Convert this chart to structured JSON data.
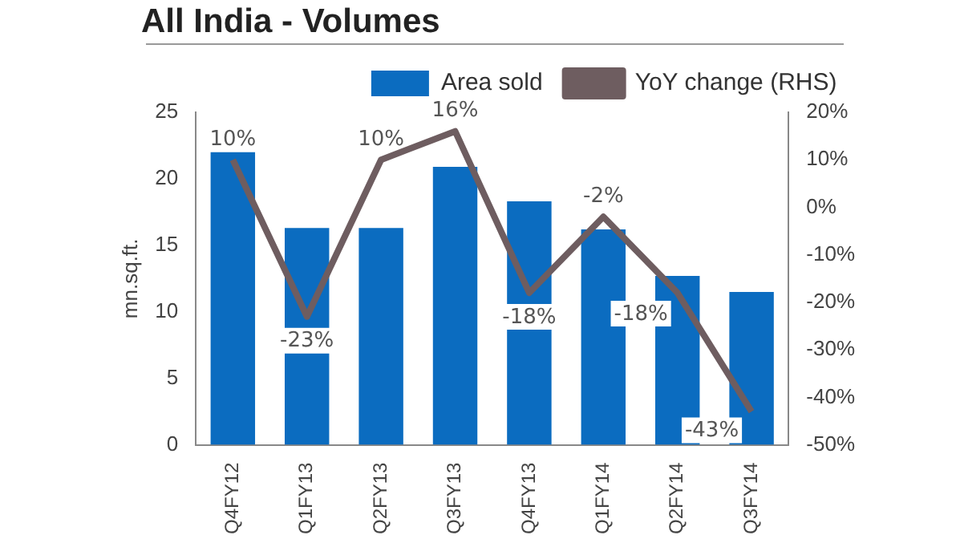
{
  "chart_data": {
    "type": "bar",
    "title": "All India - Volumes",
    "ylabel": "mn.sq.ft.",
    "categories": [
      "Q4FY12",
      "Q1FY13",
      "Q2FY13",
      "Q3FY13",
      "Q4FY13",
      "Q1FY14",
      "Q2FY14",
      "Q3FY14"
    ],
    "series": [
      {
        "name": "Area sold",
        "color": "#0b6cc0",
        "values": [
          22,
          16.3,
          16.3,
          20.9,
          18.3,
          16.2,
          12.7,
          11.5
        ]
      },
      {
        "name": "YoY change (RHS)",
        "type": "line",
        "axis": "y2",
        "color": "#6e5d60",
        "values": [
          10,
          -23,
          10,
          16,
          -18,
          -2,
          -18,
          -43
        ],
        "value_labels": [
          "10%",
          "-23%",
          "10%",
          "16%",
          "-18%",
          "-2%",
          "-18%",
          "-43%"
        ]
      }
    ],
    "ylim": [
      0,
      25
    ],
    "yticks": [
      0,
      5,
      10,
      15,
      20,
      25
    ],
    "y2lim": [
      -50,
      20
    ],
    "y2ticks": [
      {
        "value": -50,
        "label": "-50%"
      },
      {
        "value": -40,
        "label": "-40%"
      },
      {
        "value": -30,
        "label": "-30%"
      },
      {
        "value": -20,
        "label": "-20%"
      },
      {
        "value": -10,
        "label": "-10%"
      },
      {
        "value": 0,
        "label": "0%"
      },
      {
        "value": 10,
        "label": "10%"
      },
      {
        "value": 20,
        "label": "20%"
      }
    ],
    "legend": "top right",
    "grid": false,
    "marker": "none",
    "line_style": "solid"
  }
}
